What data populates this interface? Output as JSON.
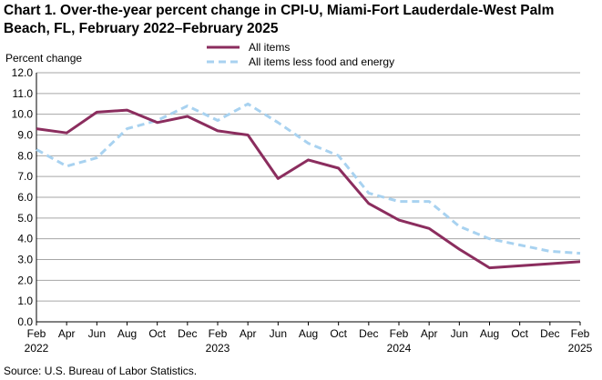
{
  "chart_data": {
    "type": "line",
    "title": "Chart 1. Over-the-year percent change in CPI-U, Miami-Fort Lauderdale-West Palm Beach, FL, February 2022–February 2025",
    "ylabel": "Percent change",
    "xlabel": "",
    "ylim": [
      0,
      12
    ],
    "yticks": [
      "0.0",
      "1.0",
      "2.0",
      "3.0",
      "4.0",
      "5.0",
      "6.0",
      "7.0",
      "8.0",
      "9.0",
      "10.0",
      "11.0",
      "12.0"
    ],
    "x_month_labels": [
      "Feb",
      "Apr",
      "Jun",
      "Aug",
      "Oct",
      "Dec",
      "Feb",
      "Apr",
      "Jun",
      "Aug",
      "Oct",
      "Dec",
      "Feb",
      "Apr",
      "Jun",
      "Aug",
      "Oct",
      "Dec",
      "Feb"
    ],
    "x_year_labels": [
      {
        "index": 0,
        "label": "2022"
      },
      {
        "index": 6,
        "label": "2023"
      },
      {
        "index": 12,
        "label": "2024"
      },
      {
        "index": 18,
        "label": "2025"
      }
    ],
    "grid": true,
    "legend": "top-center",
    "series": [
      {
        "name": "All items",
        "color": "#8b2d5e",
        "style": "solid",
        "values": [
          9.3,
          9.1,
          10.1,
          10.2,
          9.6,
          9.9,
          9.2,
          9.0,
          6.9,
          7.8,
          7.4,
          5.7,
          4.9,
          4.5,
          3.5,
          2.6,
          2.7,
          2.8,
          2.9
        ]
      },
      {
        "name": "All items less food and energy",
        "color": "#a8d2f0",
        "style": "dashed",
        "values": [
          8.3,
          7.5,
          7.9,
          9.3,
          9.7,
          10.4,
          9.7,
          10.5,
          9.6,
          8.6,
          8.0,
          6.2,
          5.8,
          5.8,
          4.6,
          4.0,
          3.7,
          3.4,
          3.3
        ]
      }
    ]
  },
  "source": "Source: U.S. Bureau of Labor Statistics."
}
